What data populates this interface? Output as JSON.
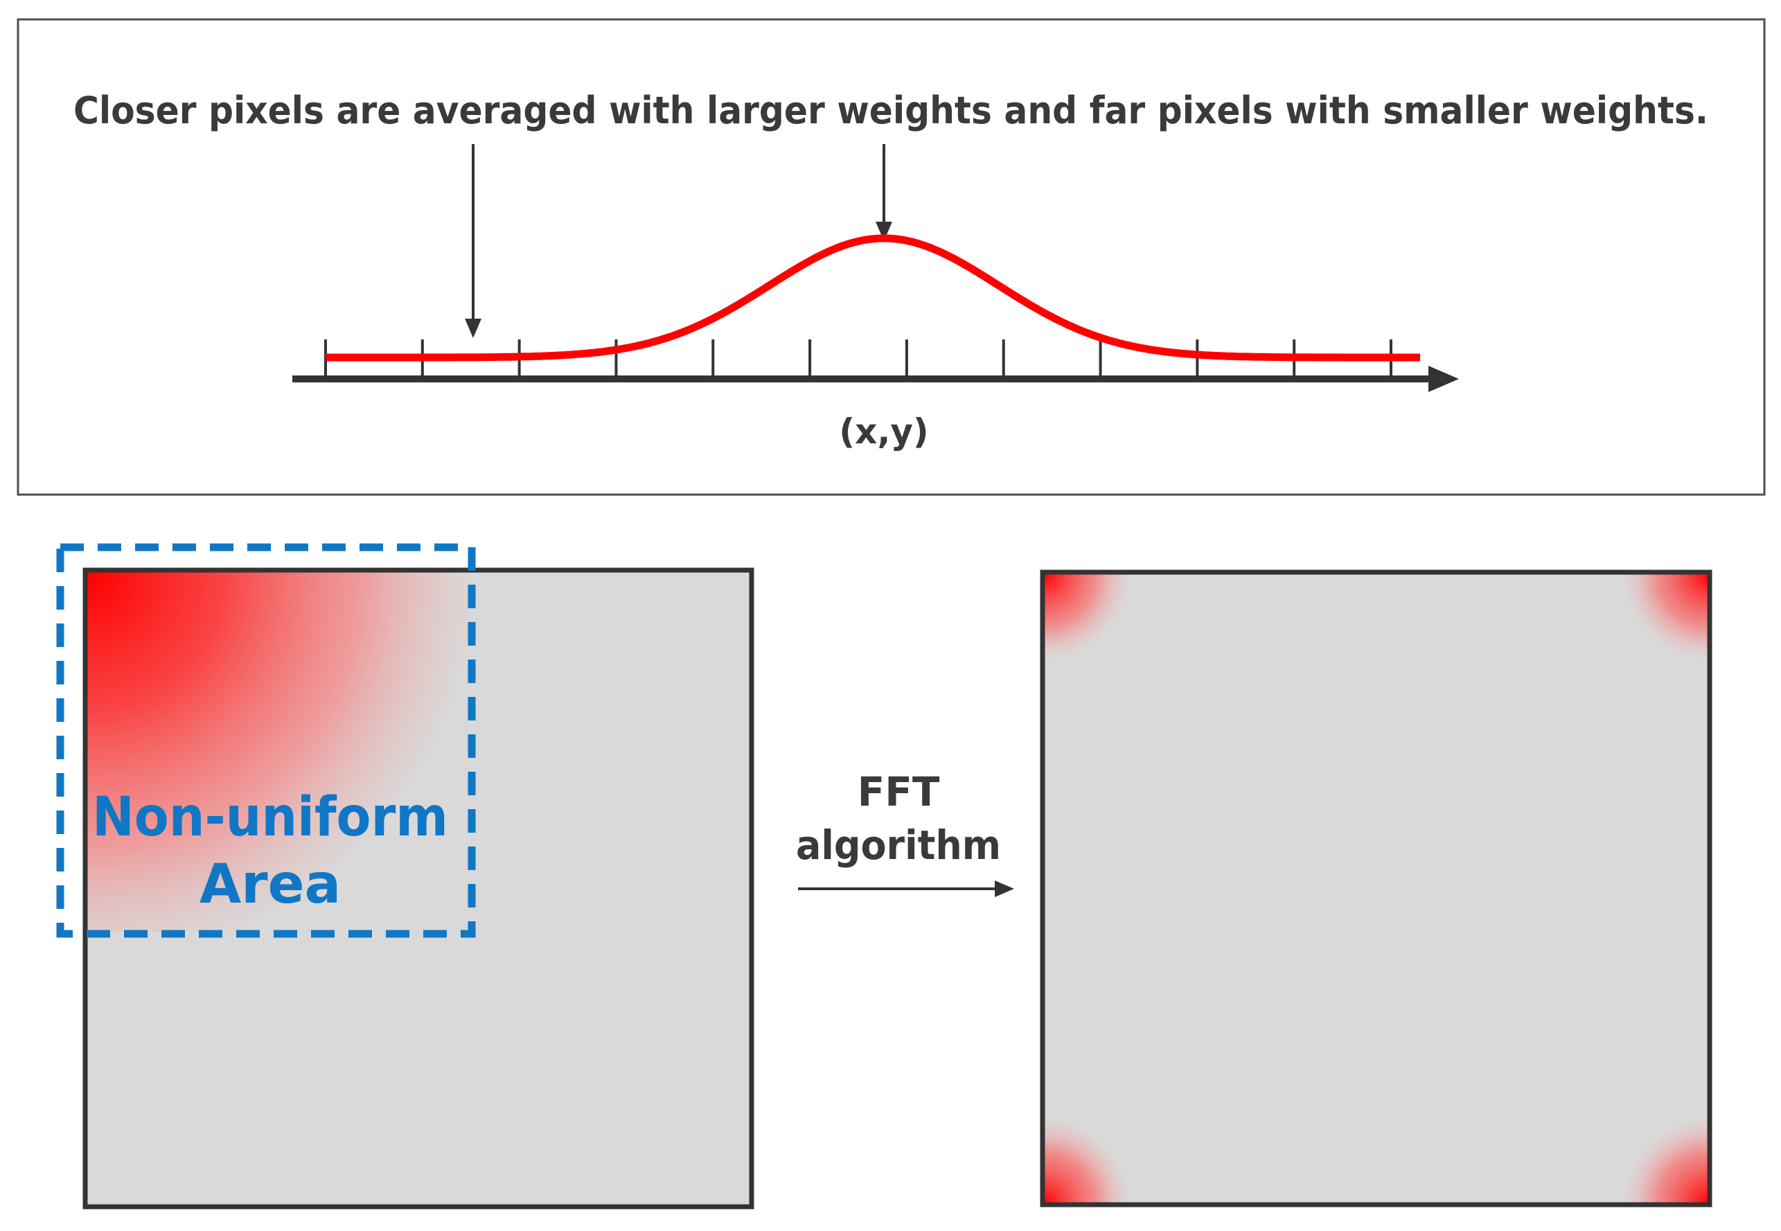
{
  "top_panel": {
    "caption": "Closer pixels are averaged with larger weights and far pixels with smaller weights.",
    "axis_label": "(x,y)",
    "curve_color": "#ff0000",
    "axis_color": "#333333",
    "tick_count": 12
  },
  "left_panel": {
    "label_line1": "Non-uniform",
    "label_line2": "Area",
    "label_color": "#1077c6",
    "fill_color": "#d9d9d9",
    "highlight_color": "#ff0000"
  },
  "transform": {
    "label_line1": "FFT",
    "label_line2": "algorithm"
  },
  "right_panel": {
    "fill_color": "#d9d9d9",
    "highlight_color": "#ff0000"
  }
}
